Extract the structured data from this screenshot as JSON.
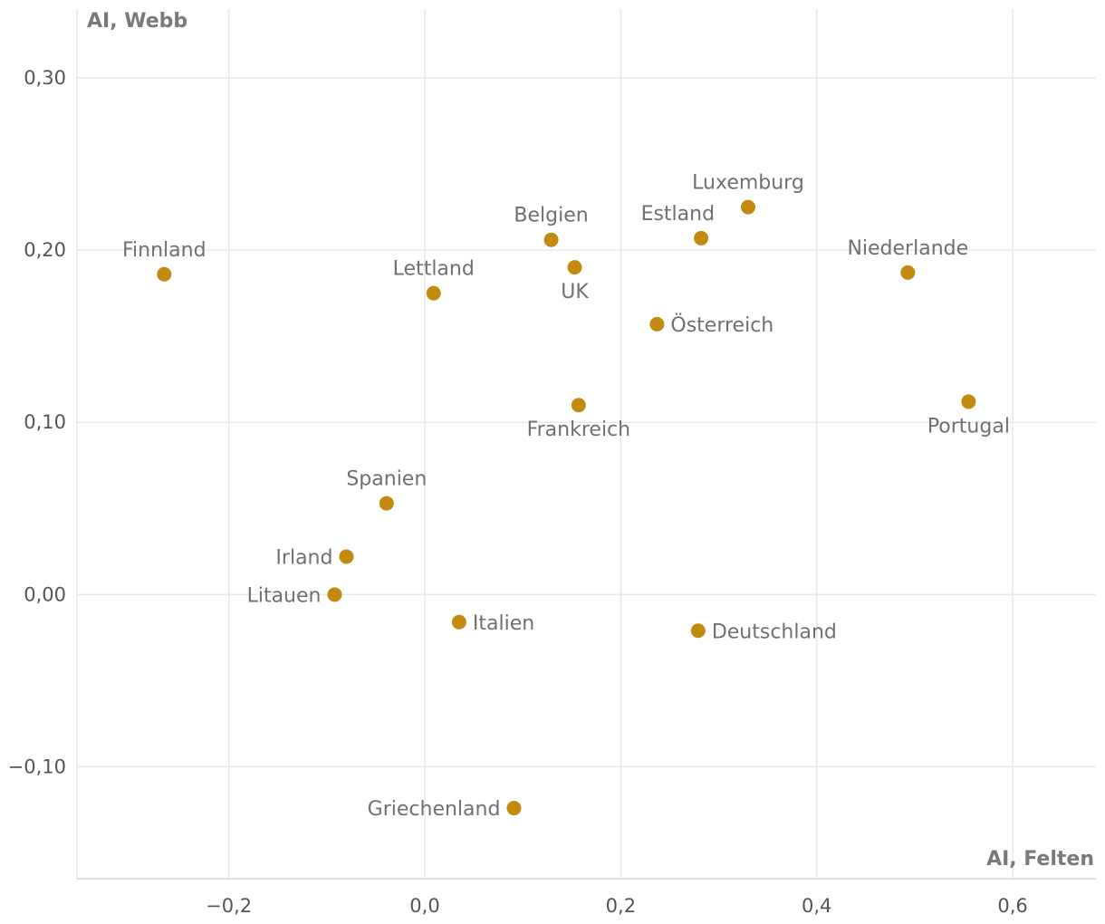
{
  "chart_data": {
    "type": "scatter",
    "xlabel": "AI, Felten",
    "ylabel": "AI, Webb",
    "xlim": [
      -0.355,
      0.685
    ],
    "ylim": [
      -0.165,
      0.34
    ],
    "grid": true,
    "color": "#c28a0e",
    "x_ticks": [
      {
        "value": -0.2,
        "label": "−0,2"
      },
      {
        "value": 0.0,
        "label": "0,0"
      },
      {
        "value": 0.2,
        "label": "0,2"
      },
      {
        "value": 0.4,
        "label": "0,4"
      },
      {
        "value": 0.6,
        "label": "0,6"
      }
    ],
    "y_ticks": [
      {
        "value": -0.1,
        "label": "−0,10"
      },
      {
        "value": 0.0,
        "label": "0,00"
      },
      {
        "value": 0.1,
        "label": "0,10"
      },
      {
        "value": 0.2,
        "label": "0,20"
      },
      {
        "value": 0.3,
        "label": "0,30"
      }
    ],
    "points": [
      {
        "name": "Finnland",
        "x": -0.266,
        "y": 0.186,
        "pos": "top"
      },
      {
        "name": "Lettland",
        "x": 0.009,
        "y": 0.175,
        "pos": "top"
      },
      {
        "name": "Belgien",
        "x": 0.129,
        "y": 0.206,
        "pos": "top"
      },
      {
        "name": "UK",
        "x": 0.153,
        "y": 0.19,
        "pos": "bottom"
      },
      {
        "name": "Estland",
        "x": 0.282,
        "y": 0.207,
        "pos": "topleft"
      },
      {
        "name": "Luxemburg",
        "x": 0.33,
        "y": 0.225,
        "pos": "top"
      },
      {
        "name": "Niederlande",
        "x": 0.493,
        "y": 0.187,
        "pos": "top"
      },
      {
        "name": "Österreich",
        "x": 0.237,
        "y": 0.157,
        "pos": "right"
      },
      {
        "name": "Frankreich",
        "x": 0.157,
        "y": 0.11,
        "pos": "bottom"
      },
      {
        "name": "Portugal",
        "x": 0.555,
        "y": 0.112,
        "pos": "bottom"
      },
      {
        "name": "Spanien",
        "x": -0.039,
        "y": 0.053,
        "pos": "top"
      },
      {
        "name": "Irland",
        "x": -0.08,
        "y": 0.022,
        "pos": "left"
      },
      {
        "name": "Litauen",
        "x": -0.092,
        "y": 0.0,
        "pos": "left"
      },
      {
        "name": "Italien",
        "x": 0.035,
        "y": -0.016,
        "pos": "right"
      },
      {
        "name": "Deutschland",
        "x": 0.279,
        "y": -0.021,
        "pos": "right"
      },
      {
        "name": "Griechenland",
        "x": 0.091,
        "y": -0.124,
        "pos": "left"
      }
    ]
  }
}
